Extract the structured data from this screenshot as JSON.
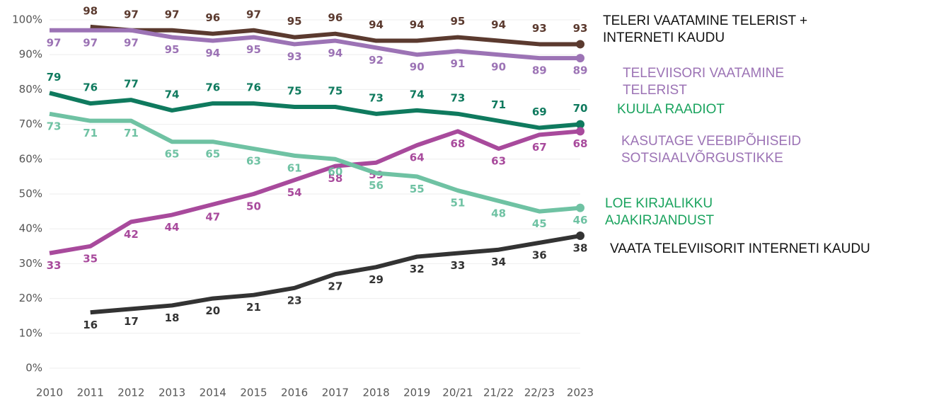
{
  "chart_data": {
    "type": "line",
    "categories": [
      "2010",
      "2011",
      "2012",
      "2013",
      "2014",
      "2015",
      "2016",
      "2017",
      "2018",
      "2019",
      "20/21",
      "21/22",
      "22/23",
      "2023"
    ],
    "ylim": [
      0,
      100
    ],
    "yticks": [
      {
        "value": 0,
        "label": "0%"
      },
      {
        "value": 10,
        "label": "10%"
      },
      {
        "value": 20,
        "label": "20%"
      },
      {
        "value": 30,
        "label": "30%"
      },
      {
        "value": 40,
        "label": "40%"
      },
      {
        "value": 50,
        "label": "50%"
      },
      {
        "value": 60,
        "label": "60%"
      },
      {
        "value": 70,
        "label": "70%"
      },
      {
        "value": 80,
        "label": "80%"
      },
      {
        "value": 90,
        "label": "90%"
      },
      {
        "value": 100,
        "label": "100%"
      }
    ],
    "grid": true,
    "series": [
      {
        "name": "TELERI VAATAMINE TELERIST + INTERNETI KAUDU",
        "color": "#5b3a2f",
        "label_color": "#111111",
        "values": [
          null,
          98,
          97,
          97,
          96,
          97,
          95,
          96,
          94,
          94,
          95,
          94,
          93,
          93
        ]
      },
      {
        "name": "TELEVIISORI VAATAMINE TELERIST",
        "color": "#9c73b5",
        "label_color": "#9c73b5",
        "values": [
          97,
          97,
          97,
          95,
          94,
          95,
          93,
          94,
          92,
          90,
          91,
          90,
          89,
          89
        ]
      },
      {
        "name": "KUULA RAADIOT",
        "color": "#0f7a5e",
        "label_color": "#1aa35e",
        "values": [
          79,
          76,
          77,
          74,
          76,
          76,
          75,
          75,
          73,
          74,
          73,
          71,
          69,
          70
        ]
      },
      {
        "name": "KASUTAGE VEEBIPÕHISEID SOTSIAALVÕRGUSTIKKE",
        "color": "#a84a9c",
        "label_color": "#9c73b5",
        "values": [
          33,
          35,
          42,
          44,
          47,
          50,
          54,
          58,
          59,
          64,
          68,
          63,
          67,
          68
        ]
      },
      {
        "name": "LOE KIRJALIKKU AJAKIRJANDUST",
        "color": "#6fc2a3",
        "label_color": "#1aa35e",
        "values": [
          73,
          71,
          71,
          65,
          65,
          63,
          61,
          60,
          56,
          55,
          51,
          48,
          45,
          46
        ]
      },
      {
        "name": "VAATA TELEVIISORIT INTERNETI KAUDU",
        "color": "#333333",
        "label_color": "#111111",
        "values": [
          null,
          16,
          17,
          18,
          20,
          21,
          23,
          27,
          29,
          32,
          33,
          34,
          36,
          38
        ]
      }
    ]
  }
}
